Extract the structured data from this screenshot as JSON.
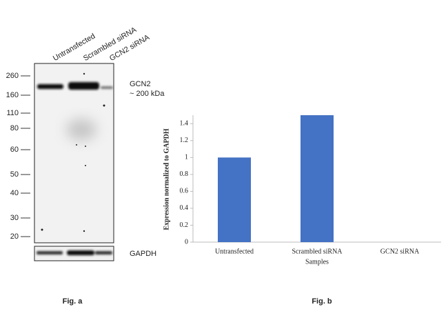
{
  "blot": {
    "lanes": [
      "Untransfected",
      "Scrambled siRNA",
      "GCN2 siRNA"
    ],
    "markers": [
      "260",
      "160",
      "110",
      "80",
      "60",
      "50",
      "40",
      "30",
      "20"
    ],
    "band_label": "GCN2",
    "band_size": "~ 200 kDa",
    "loading_label": "GAPDH",
    "caption": "Fig. a"
  },
  "chart_data": {
    "type": "bar",
    "categories": [
      "Untransfected",
      "Scrambled siRNA",
      "GCN2 siRNA"
    ],
    "values": [
      1,
      1.5,
      0
    ],
    "color": "#4472c4",
    "ylim": [
      0,
      1.5
    ],
    "yticks": [
      0,
      0.2,
      0.4,
      0.6,
      0.8,
      1,
      1.2,
      1.4
    ],
    "ylabel": "Expression normalized to GAPDH",
    "xlabel": "Samples",
    "caption": "Fig. b"
  }
}
